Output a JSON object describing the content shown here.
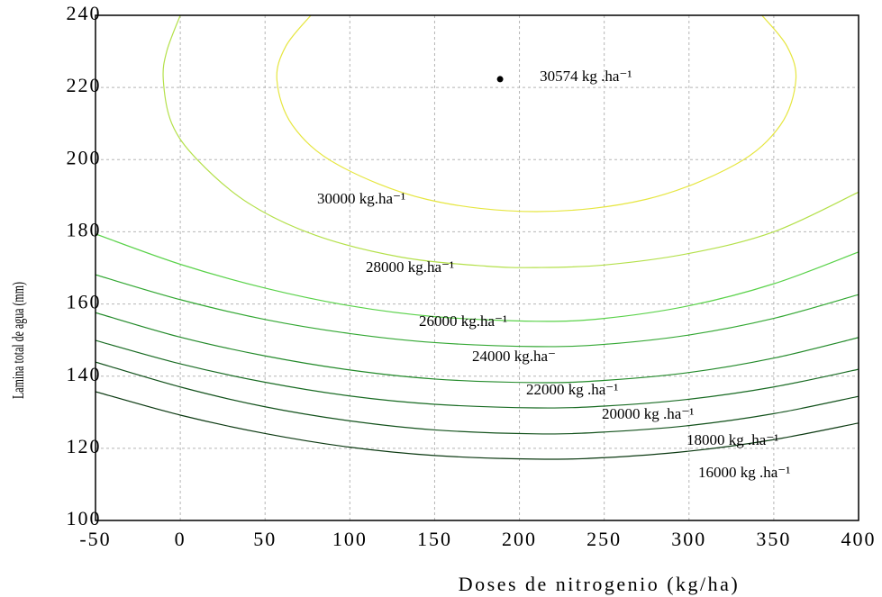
{
  "chart_data": {
    "type": "line",
    "x_label": "Doses de nitrogenio (kg/ha)",
    "y_label": "Lamina total de agua (mm)",
    "xlim": [
      -50,
      400
    ],
    "ylim": [
      100,
      240
    ],
    "xticks": [
      -50,
      0,
      50,
      100,
      150,
      200,
      250,
      300,
      350,
      400
    ],
    "yticks": [
      100,
      120,
      140,
      160,
      180,
      200,
      220,
      240
    ],
    "grid": true,
    "series": [
      {
        "name": "30000 kg.ha⁻¹",
        "color": "#e6e640",
        "x": [
          77,
          62.2,
          57,
          66.2,
          92.8,
          145.3,
          210,
          274.7,
          327.2,
          353.8,
          363,
          357.8,
          343
        ],
        "y": [
          240,
          231.4,
          222,
          209.5,
          198.6,
          189.0,
          185.6,
          189.0,
          198.6,
          209.5,
          222,
          231.4,
          240
        ]
      },
      {
        "name": "28000 kg.ha⁻¹",
        "color": "#b4e04a",
        "x": [
          0,
          -8,
          -10,
          -5,
          10,
          40,
          80,
          130,
          180,
          210,
          250,
          300,
          350,
          400
        ],
        "y": [
          240,
          230,
          222,
          210,
          200,
          188,
          179,
          173,
          170.5,
          170.1,
          170.8,
          174,
          180,
          191
        ]
      },
      {
        "name": "26000 kg.ha⁻¹",
        "color": "#5ad24a",
        "x": [
          -50,
          0,
          50,
          100,
          150,
          210,
          250,
          300,
          350,
          400
        ],
        "y": [
          179.4,
          171.0,
          164.4,
          159.5,
          156.5,
          155.2,
          156.0,
          159.5,
          165.6,
          174.4
        ]
      },
      {
        "name": "24000 kg.ha⁻",
        "color": "#34a834",
        "x": [
          -50,
          0,
          50,
          100,
          150,
          210,
          250,
          300,
          350,
          400
        ],
        "y": [
          168.1,
          161.2,
          155.7,
          151.8,
          149.3,
          148.2,
          148.8,
          151.4,
          156.0,
          162.6
        ]
      },
      {
        "name": "22000 kg .ha⁻¹",
        "color": "#238a2a",
        "x": [
          -50,
          0,
          50,
          100,
          150,
          210,
          250,
          300,
          350,
          400
        ],
        "y": [
          157.6,
          150.8,
          145.6,
          141.7,
          139.2,
          138.2,
          138.8,
          141.0,
          145.0,
          150.7
        ]
      },
      {
        "name": "20000 kg .ha⁻¹",
        "color": "#1a6c24",
        "x": [
          -50,
          0,
          50,
          100,
          150,
          210,
          250,
          300,
          350,
          400
        ],
        "y": [
          149.9,
          143.4,
          138.3,
          134.5,
          132.2,
          131.2,
          131.7,
          133.6,
          137.0,
          141.9
        ]
      },
      {
        "name": "18000 kg .ha⁻¹",
        "color": "#13521c",
        "x": [
          -50,
          0,
          50,
          100,
          150,
          210,
          250,
          300,
          350,
          400
        ],
        "y": [
          143.9,
          137.0,
          131.5,
          127.6,
          125.1,
          124.0,
          124.5,
          126.3,
          129.6,
          134.4
        ]
      },
      {
        "name": "16000 kg .ha⁻¹",
        "color": "#0c3a12",
        "x": [
          -50,
          0,
          50,
          100,
          150,
          210,
          250,
          300,
          350,
          400
        ],
        "y": [
          135.7,
          129.2,
          124.1,
          120.3,
          118.0,
          117.0,
          117.4,
          119.2,
          122.4,
          127.0
        ]
      }
    ],
    "point": {
      "x": 188.6,
      "y": 222.3,
      "label": "30574 kg .ha⁻¹"
    }
  }
}
